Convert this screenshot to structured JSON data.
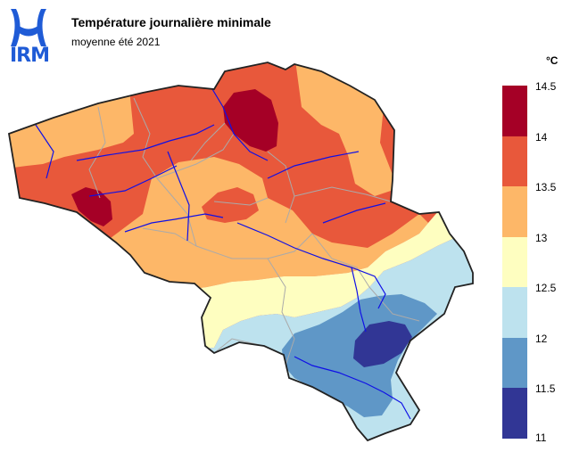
{
  "branding": {
    "logo_text": "IRM",
    "logo_color": "#1f5bd6"
  },
  "header": {
    "title": "Température journalière minimale",
    "subtitle": "moyenne été 2021"
  },
  "legend": {
    "unit": "°C",
    "ticks": [
      "14.5",
      "14",
      "13.5",
      "13",
      "12.5",
      "12",
      "11.5",
      "11"
    ],
    "bins": [
      {
        "from": 14.0,
        "to": 14.5,
        "color": "#a50026"
      },
      {
        "from": 13.5,
        "to": 14.0,
        "color": "#e8583b"
      },
      {
        "from": 13.0,
        "to": 13.5,
        "color": "#fdb768"
      },
      {
        "from": 12.5,
        "to": 13.0,
        "color": "#fefec0"
      },
      {
        "from": 12.0,
        "to": 12.5,
        "color": "#bde2ee"
      },
      {
        "from": 11.5,
        "to": 12.0,
        "color": "#5f97c7"
      },
      {
        "from": 11.0,
        "to": 11.5,
        "color": "#313695"
      }
    ]
  },
  "colors": {
    "country_border": "#222222",
    "province_border": "#aaaaaa",
    "rivers": "#1010e6"
  }
}
